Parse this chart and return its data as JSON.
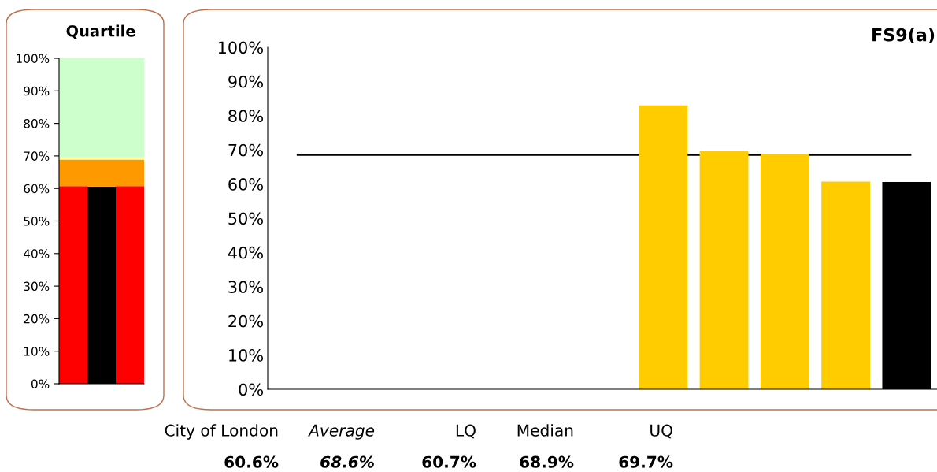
{
  "chart_data": [
    {
      "type": "bar",
      "title": "Quartile",
      "stacked": true,
      "categories": [
        null,
        null,
        null
      ],
      "series": [
        {
          "colors": [
            "#ff0000",
            "#000000",
            "#ff0000"
          ],
          "values": [
            60.7,
            60.6,
            60.7
          ]
        },
        {
          "color": "#ff9900",
          "values": [
            8.2,
            8.3,
            8.2
          ]
        },
        {
          "color": "#ffff99",
          "values": [
            0.8,
            0.8,
            0.8
          ]
        },
        {
          "color": "#ccffcc",
          "values": [
            30.3,
            30.3,
            30.3
          ]
        }
      ],
      "ylim": [
        0,
        100
      ],
      "yticks": [
        {
          "value": 0,
          "label": "0%"
        },
        {
          "value": 10,
          "label": "10%"
        },
        {
          "value": 20,
          "label": "20%"
        },
        {
          "value": 30,
          "label": "30%"
        },
        {
          "value": 40,
          "label": "40%"
        },
        {
          "value": 50,
          "label": "50%"
        },
        {
          "value": 60,
          "label": "60%"
        },
        {
          "value": 70,
          "label": "70%"
        },
        {
          "value": 80,
          "label": "80%"
        },
        {
          "value": 90,
          "label": "90%"
        },
        {
          "value": 100,
          "label": "100%"
        }
      ],
      "grid": false,
      "legend": false
    },
    {
      "type": "bar",
      "title": "FS9(a)",
      "categories": [
        null,
        null,
        null,
        null,
        null,
        null,
        null,
        null,
        null,
        null,
        null
      ],
      "values": [
        null,
        null,
        null,
        null,
        null,
        null,
        83,
        69.7,
        68.9,
        60.7,
        60.6
      ],
      "colors": [
        "#ffcc00",
        "#ffcc00",
        "#ffcc00",
        "#ffcc00",
        "#ffcc00",
        "#ffcc00",
        "#ffcc00",
        "#ffcc00",
        "#ffcc00",
        "#ffcc00",
        "#000000"
      ],
      "ylim": [
        0,
        100
      ],
      "yticks": [
        {
          "value": 0,
          "label": "0%"
        },
        {
          "value": 10,
          "label": "10%"
        },
        {
          "value": 20,
          "label": "20%"
        },
        {
          "value": 30,
          "label": "30%"
        },
        {
          "value": 40,
          "label": "40%"
        },
        {
          "value": 50,
          "label": "50%"
        },
        {
          "value": 60,
          "label": "60%"
        },
        {
          "value": 70,
          "label": "70%"
        },
        {
          "value": 80,
          "label": "80%"
        },
        {
          "value": 90,
          "label": "90%"
        },
        {
          "value": 100,
          "label": "100%"
        }
      ],
      "ref_lines": [
        {
          "axis": "y",
          "value": 68.6,
          "color": "#000000"
        }
      ],
      "annotations": [
        "City of London",
        "Average",
        "LQ",
        "Median",
        "UQ",
        "60.6%",
        "68.6%",
        "60.7%",
        "68.9%",
        "69.7%"
      ],
      "grid": false,
      "legend": false
    }
  ]
}
